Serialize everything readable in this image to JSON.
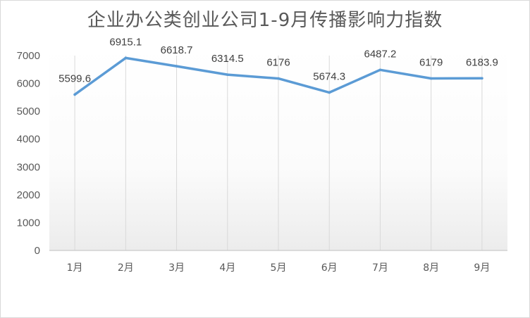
{
  "chart_data": {
    "type": "line",
    "title": "企业办公类创业公司1-9月传播影响力指数",
    "categories": [
      "1月",
      "2月",
      "3月",
      "4月",
      "5月",
      "6月",
      "7月",
      "8月",
      "9月"
    ],
    "series": [
      {
        "values": [
          5599.6,
          6915.1,
          6618.7,
          6314.5,
          6176,
          5674.3,
          6487.2,
          6179,
          6183.9
        ]
      }
    ],
    "data_labels": [
      "5599.6",
      "6915.1",
      "6618.7",
      "6314.5",
      "6176",
      "5674.3",
      "6487.2",
      "6179",
      "6183.9"
    ],
    "ylim": [
      0,
      7000
    ],
    "yticks": [
      0,
      1000,
      2000,
      3000,
      4000,
      5000,
      6000,
      7000
    ],
    "xlabel": "",
    "ylabel": "",
    "grid": "vertical",
    "legend": "none",
    "colors": {
      "line": "#5b9bd5",
      "grid": "#d9d9d9",
      "axis": "#bfbfbf",
      "text": "#595959"
    }
  }
}
